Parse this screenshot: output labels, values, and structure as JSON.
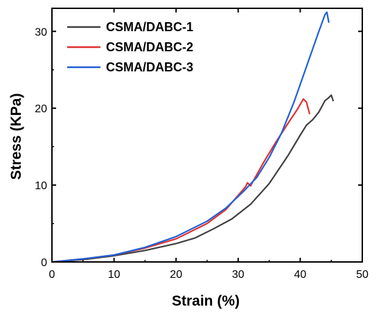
{
  "chart_data": {
    "type": "line",
    "xlabel": "Strain (%)",
    "ylabel": "Stress (KPa)",
    "xlim": [
      0,
      50
    ],
    "ylim": [
      0,
      33
    ],
    "x_ticks": [
      0,
      10,
      20,
      30,
      40,
      50
    ],
    "y_ticks": [
      0,
      10,
      20,
      30
    ],
    "x_tick_labels": [
      "0",
      "10",
      "20",
      "30",
      "40",
      "50"
    ],
    "y_tick_labels": [
      "0",
      "10",
      "20",
      "30"
    ],
    "grid": false,
    "legend_position": "top-left",
    "series": [
      {
        "name": "CSMA/DABC-1",
        "color": "#404040",
        "x": [
          0,
          5,
          10,
          15,
          20,
          23,
          26,
          29,
          32,
          35,
          38,
          40,
          41,
          42,
          43,
          44,
          44.5,
          45,
          45.3
        ],
        "y": [
          0,
          0.3,
          0.8,
          1.5,
          2.4,
          3.1,
          4.3,
          5.6,
          7.5,
          10.2,
          13.8,
          16.5,
          17.8,
          18.5,
          19.5,
          21.0,
          21.3,
          21.7,
          21.0
        ]
      },
      {
        "name": "CSMA/DABC-2",
        "color": "#e03030",
        "x": [
          0,
          5,
          10,
          15,
          20,
          25,
          28,
          31.2,
          31.5,
          32,
          34,
          36,
          38,
          39.5,
          40.5,
          41,
          41.5
        ],
        "y": [
          0,
          0.4,
          0.9,
          1.8,
          3.0,
          5.0,
          6.8,
          9.8,
          10.3,
          9.9,
          12.8,
          15.5,
          18.0,
          19.8,
          21.2,
          20.8,
          19.3
        ]
      },
      {
        "name": "CSMA/DABC-3",
        "color": "#2060d8",
        "x": [
          0,
          5,
          10,
          15,
          20,
          25,
          28,
          31,
          33,
          35,
          37,
          39,
          41,
          43,
          44,
          44.3,
          44.6
        ],
        "y": [
          0,
          0.4,
          0.9,
          1.9,
          3.3,
          5.3,
          7.0,
          9.3,
          11.0,
          13.6,
          16.8,
          20.8,
          25.4,
          30.0,
          32.2,
          32.5,
          31.2
        ]
      }
    ]
  }
}
